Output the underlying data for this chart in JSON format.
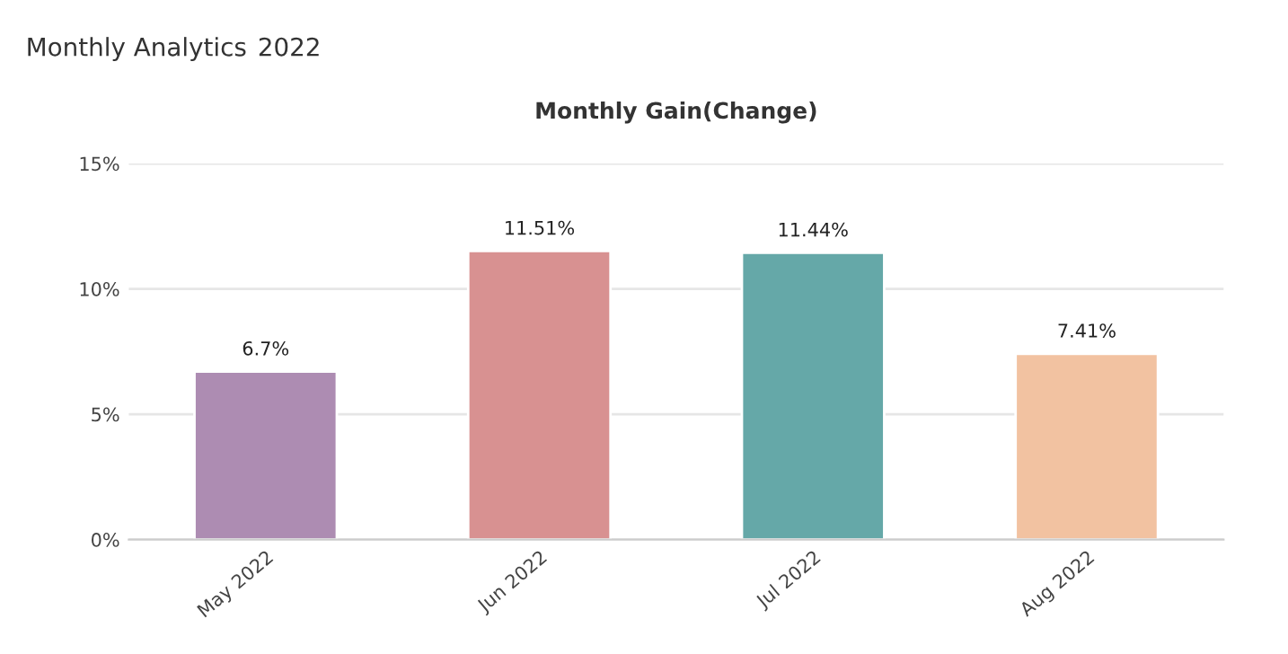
{
  "chart_data": {
    "type": "bar",
    "title": "Monthly Gain(Change)",
    "categories": [
      "May 2022",
      "Jun 2022",
      "Jul 2022",
      "Aug 2022"
    ],
    "values": [
      6.7,
      11.51,
      11.44,
      7.41
    ],
    "colors": [
      "#b286b8",
      "#e48585",
      "#5ab3b3",
      "#ffbf94"
    ],
    "value_labels": [
      "6.7%",
      "11.51%",
      "11.44%",
      "7.41%"
    ],
    "ylim": [
      0,
      15
    ],
    "yticks": [
      {
        "value": 0,
        "label": "0%"
      },
      {
        "value": 5,
        "label": "5%"
      },
      {
        "value": 10,
        "label": "10%"
      },
      {
        "value": 15,
        "label": "15%"
      }
    ],
    "grid": "y",
    "annotations": [
      "Monthly Analytics",
      "2022"
    ]
  }
}
